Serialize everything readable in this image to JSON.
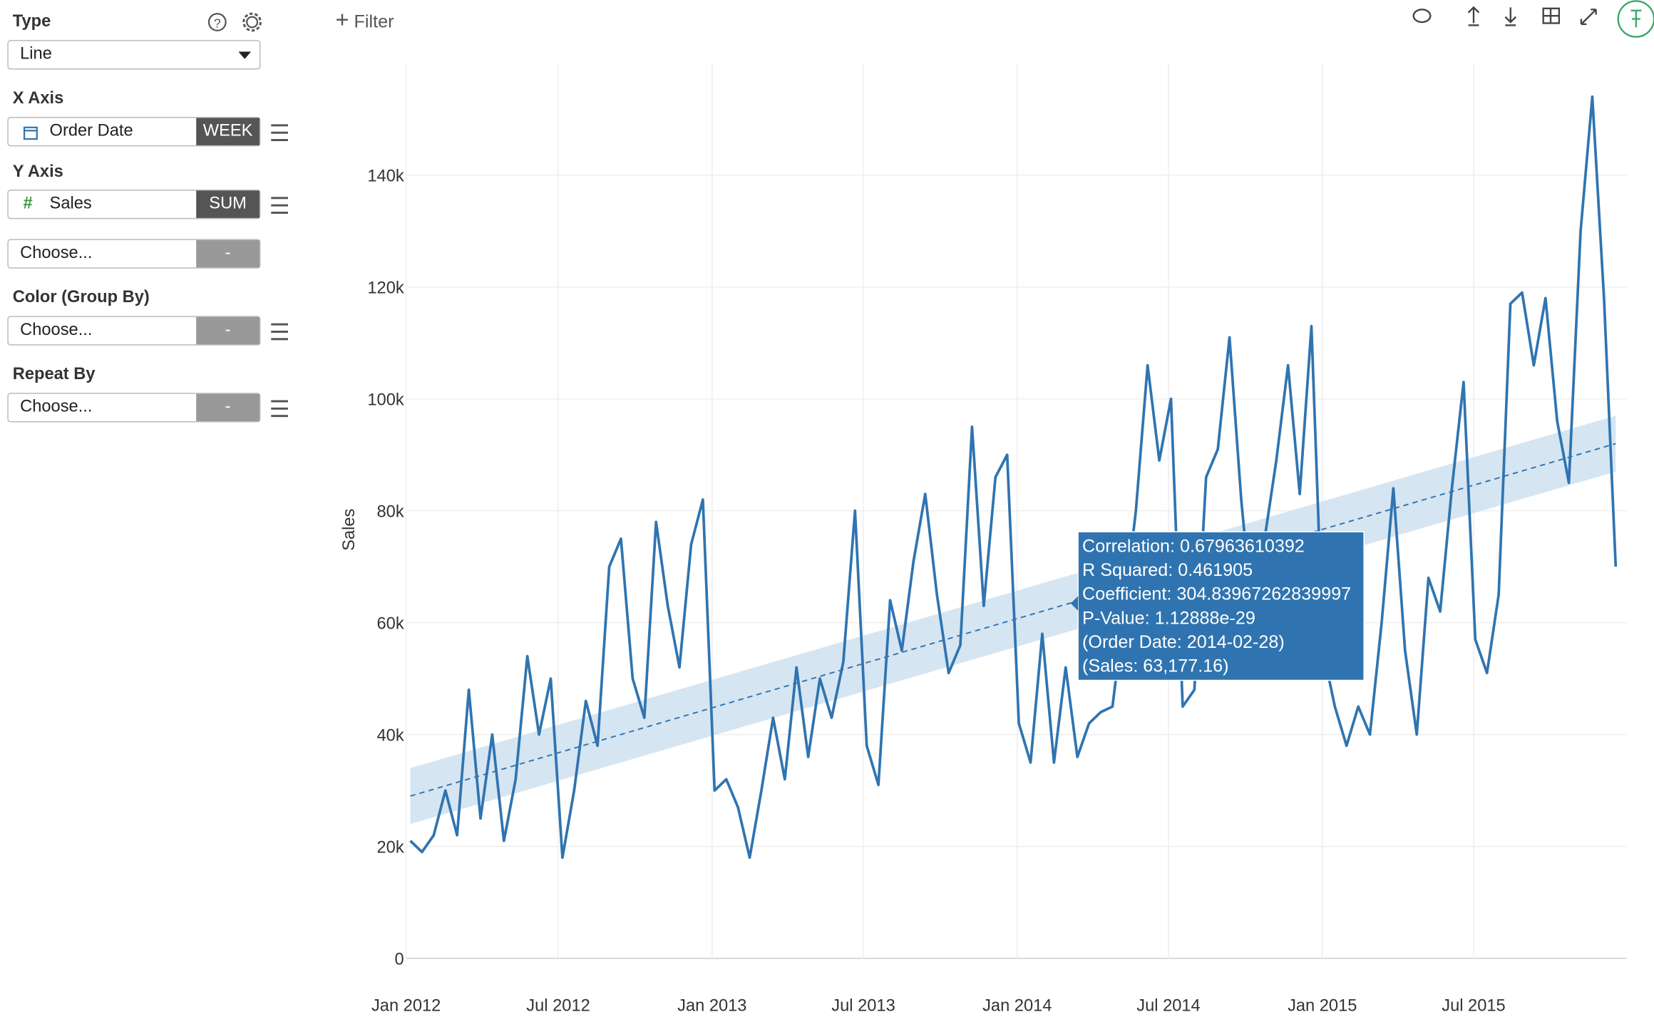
{
  "sidebar": {
    "type_label": "Type",
    "type_value": "Line",
    "x_axis_label": "X Axis",
    "x_field": "Order Date",
    "x_agg": "WEEK",
    "y_axis_label": "Y Axis",
    "y_field": "Sales",
    "y_agg": "SUM",
    "y2_field": "Choose...",
    "y2_agg": "-",
    "color_label": "Color (Group By)",
    "color_field": "Choose...",
    "color_agg": "-",
    "repeat_label": "Repeat By",
    "repeat_field": "Choose...",
    "repeat_agg": "-"
  },
  "toolbar": {
    "filter": "Filter"
  },
  "chart_data": {
    "type": "line",
    "y_label": "Sales",
    "x": [
      "2012-01-06",
      "2012-01-20",
      "2012-02-03",
      "2012-02-17",
      "2012-03-02",
      "2012-03-16",
      "2012-03-30",
      "2012-04-13",
      "2012-04-27",
      "2012-05-11",
      "2012-05-25",
      "2012-06-08",
      "2012-06-22",
      "2012-07-06",
      "2012-07-20",
      "2012-08-03",
      "2012-08-17",
      "2012-08-31",
      "2012-09-14",
      "2012-09-28",
      "2012-10-12",
      "2012-10-26",
      "2012-11-09",
      "2012-11-23",
      "2012-12-07",
      "2012-12-21",
      "2013-01-04",
      "2013-01-18",
      "2013-02-01",
      "2013-02-15",
      "2013-03-01",
      "2013-03-15",
      "2013-03-29",
      "2013-04-12",
      "2013-04-26",
      "2013-05-10",
      "2013-05-24",
      "2013-06-07",
      "2013-06-21",
      "2013-07-05",
      "2013-07-19",
      "2013-08-02",
      "2013-08-16",
      "2013-08-30",
      "2013-09-13",
      "2013-09-27",
      "2013-10-11",
      "2013-10-25",
      "2013-11-08",
      "2013-11-22",
      "2013-12-06",
      "2013-12-20",
      "2014-01-03",
      "2014-01-17",
      "2014-01-31",
      "2014-02-14",
      "2014-02-28",
      "2014-03-14",
      "2014-03-28",
      "2014-04-11",
      "2014-04-25",
      "2014-05-09",
      "2014-05-23",
      "2014-06-06",
      "2014-06-20",
      "2014-07-04",
      "2014-07-18",
      "2014-08-01",
      "2014-08-15",
      "2014-08-29",
      "2014-09-12",
      "2014-09-26",
      "2014-10-10",
      "2014-10-24",
      "2014-11-07",
      "2014-11-21",
      "2014-12-05",
      "2014-12-19",
      "2015-01-02",
      "2015-01-16",
      "2015-01-30",
      "2015-02-13",
      "2015-02-27",
      "2015-03-13",
      "2015-03-27",
      "2015-04-10",
      "2015-04-24",
      "2015-05-08",
      "2015-05-22",
      "2015-06-05",
      "2015-06-19",
      "2015-07-03",
      "2015-07-17",
      "2015-07-31",
      "2015-08-14",
      "2015-08-28",
      "2015-09-11",
      "2015-09-25",
      "2015-10-09",
      "2015-10-23",
      "2015-11-06",
      "2015-11-20",
      "2015-12-04",
      "2015-12-18"
    ],
    "series": [
      {
        "name": "Sales",
        "color": "#2f74b0",
        "values": [
          21000,
          19000,
          22000,
          30000,
          22000,
          48000,
          25000,
          40000,
          21000,
          32000,
          54000,
          40000,
          50000,
          18000,
          30000,
          46000,
          38000,
          70000,
          75000,
          50000,
          43000,
          78000,
          63000,
          52000,
          74000,
          82000,
          30000,
          32000,
          27000,
          18000,
          30000,
          43000,
          32000,
          52000,
          36000,
          50000,
          43000,
          53000,
          80000,
          38000,
          31000,
          64000,
          55000,
          71000,
          83000,
          65000,
          51000,
          56000,
          95000,
          63000,
          86000,
          90000,
          42000,
          35000,
          58000,
          35000,
          52000,
          36000,
          42000,
          44000,
          45000,
          62000,
          80000,
          106000,
          89000,
          100000,
          45000,
          48000,
          86000,
          91000,
          111000,
          82000,
          60000,
          75000,
          89000,
          106000,
          83000,
          113000,
          55000,
          45000,
          38000,
          45000,
          40000,
          60000,
          84000,
          55000,
          40000,
          68000,
          62000,
          84000,
          103000,
          57000,
          51000,
          65000,
          117000,
          119000,
          106000,
          118000,
          96000,
          85000,
          130000,
          154000,
          118000,
          70000
        ]
      }
    ],
    "trend": {
      "color": "#2f74b0",
      "band_color": "#cfe1f0",
      "x": [
        "2012-01-06",
        "2015-12-18"
      ],
      "values": [
        29000,
        92000
      ],
      "lower": [
        24000,
        87000
      ],
      "upper": [
        34000,
        97000
      ]
    },
    "tooltip": [
      "Correlation: 0.67963610392",
      "R Squared: 0.461905",
      "Coefficient: 304.83967262839997",
      "P-Value: 1.12888e-29",
      "(Order Date: 2014-02-28)",
      "(Sales: 63,177.16)"
    ],
    "xlim": [
      "2012-01-01",
      "2015-12-31"
    ],
    "xticks": [
      {
        "value": "2012-01-01",
        "label": "Jan 2012"
      },
      {
        "value": "2012-07-01",
        "label": "Jul 2012"
      },
      {
        "value": "2013-01-01",
        "label": "Jan 2013"
      },
      {
        "value": "2013-07-01",
        "label": "Jul 2013"
      },
      {
        "value": "2014-01-01",
        "label": "Jan 2014"
      },
      {
        "value": "2014-07-01",
        "label": "Jul 2014"
      },
      {
        "value": "2015-01-01",
        "label": "Jan 2015"
      },
      {
        "value": "2015-07-01",
        "label": "Jul 2015"
      }
    ],
    "ylim": [
      0,
      160000
    ],
    "yticks": [
      0,
      {
        "value": 20000,
        "label": "20k"
      },
      {
        "value": 40000,
        "label": "40k"
      },
      {
        "value": 60000,
        "label": "60k"
      },
      {
        "value": 80000,
        "label": "80k"
      },
      {
        "value": 100000,
        "label": "100k"
      },
      {
        "value": 120000,
        "label": "120k"
      },
      {
        "value": 140000,
        "label": "140k"
      }
    ],
    "grid": true
  }
}
